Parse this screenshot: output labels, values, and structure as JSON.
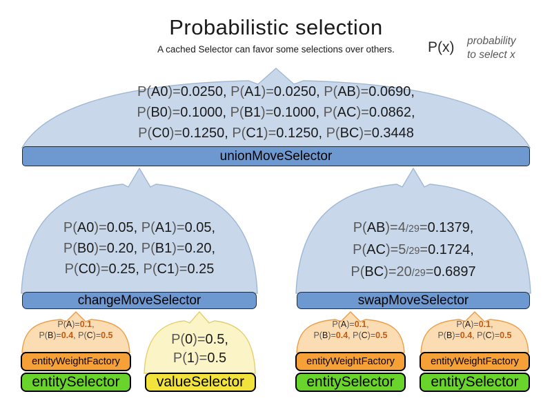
{
  "title": "Probabilistic selection",
  "subtitle": "A cached Selector can favor some selections over others.",
  "legend": {
    "symbol": "P(x)",
    "note_line1": "probability",
    "note_line2": "to select x"
  },
  "selectors": {
    "union": "unionMoveSelector",
    "change": "changeMoveSelector",
    "swap": "swapMoveSelector",
    "entity_weight_factory": "entityWeightFactory",
    "entity": "entitySelector",
    "value": "valueSelector"
  },
  "probabilities": {
    "union": {
      "lines": [
        [
          {
            "t": "P(",
            "c": "g"
          },
          {
            "t": "A0",
            "c": "b"
          },
          {
            "t": ")=",
            "c": "g"
          },
          {
            "t": "0.0250, ",
            "c": "b"
          },
          {
            "t": "P(",
            "c": "g"
          },
          {
            "t": "A1",
            "c": "b"
          },
          {
            "t": ")=",
            "c": "g"
          },
          {
            "t": "0.0250, ",
            "c": "b"
          },
          {
            "t": "P(",
            "c": "g"
          },
          {
            "t": "AB",
            "c": "b"
          },
          {
            "t": ")=",
            "c": "g"
          },
          {
            "t": "0.0690,",
            "c": "b"
          }
        ],
        [
          {
            "t": "P(",
            "c": "g"
          },
          {
            "t": "B0",
            "c": "b"
          },
          {
            "t": ")=",
            "c": "g"
          },
          {
            "t": "0.1000, ",
            "c": "b"
          },
          {
            "t": "P(",
            "c": "g"
          },
          {
            "t": "B1",
            "c": "b"
          },
          {
            "t": ")=",
            "c": "g"
          },
          {
            "t": "0.1000, ",
            "c": "b"
          },
          {
            "t": "P(",
            "c": "g"
          },
          {
            "t": "AC",
            "c": "b"
          },
          {
            "t": ")=",
            "c": "g"
          },
          {
            "t": "0.0862,",
            "c": "b"
          }
        ],
        [
          {
            "t": "P(",
            "c": "g"
          },
          {
            "t": "C0",
            "c": "b"
          },
          {
            "t": ")=",
            "c": "g"
          },
          {
            "t": "0.1250, ",
            "c": "b"
          },
          {
            "t": "P(",
            "c": "g"
          },
          {
            "t": "C1",
            "c": "b"
          },
          {
            "t": ")=",
            "c": "g"
          },
          {
            "t": "0.1250, ",
            "c": "b"
          },
          {
            "t": "P(",
            "c": "g"
          },
          {
            "t": "BC",
            "c": "b"
          },
          {
            "t": ")=",
            "c": "g"
          },
          {
            "t": "0.3448",
            "c": "b"
          }
        ]
      ]
    },
    "change": {
      "lines": [
        [
          {
            "t": "P(",
            "c": "g"
          },
          {
            "t": "A0",
            "c": "b"
          },
          {
            "t": ")=",
            "c": "g"
          },
          {
            "t": "0.05, ",
            "c": "b"
          },
          {
            "t": "P(",
            "c": "g"
          },
          {
            "t": "A1",
            "c": "b"
          },
          {
            "t": ")=",
            "c": "g"
          },
          {
            "t": "0.05,",
            "c": "b"
          }
        ],
        [
          {
            "t": "P(",
            "c": "g"
          },
          {
            "t": "B0",
            "c": "b"
          },
          {
            "t": ")=",
            "c": "g"
          },
          {
            "t": "0.20, ",
            "c": "b"
          },
          {
            "t": "P(",
            "c": "g"
          },
          {
            "t": "B1",
            "c": "b"
          },
          {
            "t": ")=",
            "c": "g"
          },
          {
            "t": "0.20,",
            "c": "b"
          }
        ],
        [
          {
            "t": "P(",
            "c": "g"
          },
          {
            "t": "C0",
            "c": "b"
          },
          {
            "t": ")=",
            "c": "g"
          },
          {
            "t": "0.25, ",
            "c": "b"
          },
          {
            "t": "P(",
            "c": "g"
          },
          {
            "t": "C1",
            "c": "b"
          },
          {
            "t": ")=",
            "c": "g"
          },
          {
            "t": "0.25",
            "c": "b"
          }
        ]
      ]
    },
    "swap": {
      "lines": [
        [
          {
            "t": "P(",
            "c": "g"
          },
          {
            "t": "AB",
            "c": "b"
          },
          {
            "t": ")=",
            "c": "g"
          },
          {
            "t": "4",
            "c": "g"
          },
          {
            "t": "/29",
            "c": "sm"
          },
          {
            "t": "=",
            "c": "g"
          },
          {
            "t": "0.1379,",
            "c": "b"
          }
        ],
        [
          {
            "t": "P(",
            "c": "g"
          },
          {
            "t": "AC",
            "c": "b"
          },
          {
            "t": ")=",
            "c": "g"
          },
          {
            "t": "5",
            "c": "g"
          },
          {
            "t": "/29",
            "c": "sm"
          },
          {
            "t": "=",
            "c": "g"
          },
          {
            "t": "0.1724,",
            "c": "b"
          }
        ],
        [
          {
            "t": "P(",
            "c": "g"
          },
          {
            "t": "BC",
            "c": "b"
          },
          {
            "t": ")=",
            "c": "g"
          },
          {
            "t": "20",
            "c": "g"
          },
          {
            "t": "/29",
            "c": "sm"
          },
          {
            "t": "=",
            "c": "g"
          },
          {
            "t": "0.6897",
            "c": "b"
          }
        ]
      ]
    },
    "entity_weight": {
      "lines": [
        [
          {
            "t": "P(",
            "c": "g"
          },
          {
            "t": "A",
            "c": "b"
          },
          {
            "t": ")=",
            "c": "g"
          },
          {
            "t": "0.1",
            "c": "o"
          },
          {
            "t": ",",
            "c": "g"
          }
        ],
        [
          {
            "t": "P(",
            "c": "g"
          },
          {
            "t": "B",
            "c": "b"
          },
          {
            "t": ")=",
            "c": "g"
          },
          {
            "t": "0.4",
            "c": "o"
          },
          {
            "t": ", ",
            "c": "g"
          },
          {
            "t": "P(",
            "c": "g"
          },
          {
            "t": "C",
            "c": "b"
          },
          {
            "t": ")=",
            "c": "g"
          },
          {
            "t": "0.5",
            "c": "o"
          }
        ]
      ]
    },
    "value": {
      "lines": [
        [
          {
            "t": "P(",
            "c": "g"
          },
          {
            "t": "0",
            "c": "b"
          },
          {
            "t": ")=",
            "c": "g"
          },
          {
            "t": "0.5,",
            "c": "b"
          }
        ],
        [
          {
            "t": "P(",
            "c": "g"
          },
          {
            "t": "1",
            "c": "b"
          },
          {
            "t": ")=",
            "c": "g"
          },
          {
            "t": "0.5",
            "c": "b"
          }
        ]
      ]
    }
  },
  "colors": {
    "blue_dome_fill": "#c9d7eb",
    "blue_dome_stroke": "#9fb8d6",
    "bar_fill": "#6e99d0",
    "bar_stroke": "#1c2b3a",
    "orange_dome_fill": "#fcdcb2",
    "orange_dome_stroke": "#eb9e43",
    "yellow_dome_fill": "#fbf4c6",
    "yellow_dome_stroke": "#e4d06a",
    "orange_box_fill": "#f6a138",
    "green_box_fill": "#69d42b",
    "yellow_box_fill": "#f1e23c",
    "box_stroke": "#000000",
    "text_gray": "#595959",
    "text_black": "#1a1a1a",
    "value_orange": "#c55a11"
  }
}
